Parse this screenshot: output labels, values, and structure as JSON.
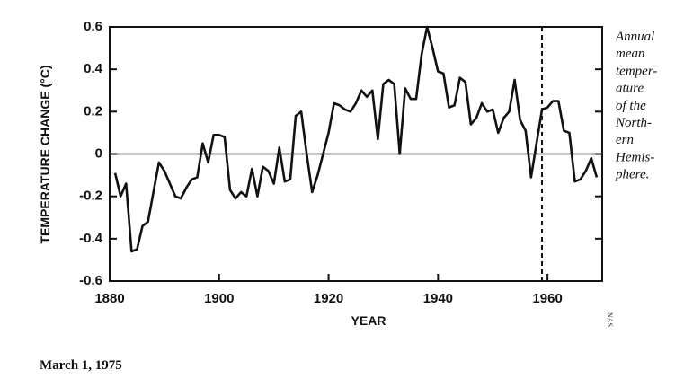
{
  "chart_data": {
    "type": "line",
    "xlabel": "YEAR",
    "ylabel": "TEMPERATURE CHANGE (°C)",
    "annotation_lines": [
      "Annual",
      "mean",
      "temper-",
      "ature",
      "of the",
      "North-",
      "ern",
      "Hemis-",
      "phere."
    ],
    "credit": "NAS",
    "date": "March 1, 1975",
    "xlim": [
      1880,
      1970
    ],
    "ylim": [
      -0.6,
      0.6
    ],
    "xticks": [
      1880,
      1900,
      1920,
      1940,
      1960
    ],
    "yticks": [
      0.6,
      0.4,
      0.2,
      0,
      -0.2,
      -0.4,
      -0.6
    ],
    "baseline": 0,
    "reference_line": {
      "x": 1959,
      "style": "dashed"
    },
    "color": "#111111",
    "x": [
      1881,
      1882,
      1883,
      1884,
      1885,
      1886,
      1887,
      1888,
      1889,
      1890,
      1891,
      1892,
      1893,
      1894,
      1895,
      1896,
      1897,
      1898,
      1899,
      1900,
      1901,
      1902,
      1903,
      1904,
      1905,
      1906,
      1907,
      1908,
      1909,
      1910,
      1911,
      1912,
      1913,
      1914,
      1915,
      1916,
      1917,
      1918,
      1919,
      1920,
      1921,
      1922,
      1923,
      1924,
      1925,
      1926,
      1927,
      1928,
      1929,
      1930,
      1931,
      1932,
      1933,
      1934,
      1935,
      1936,
      1937,
      1938,
      1939,
      1940,
      1941,
      1942,
      1943,
      1944,
      1945,
      1946,
      1947,
      1948,
      1949,
      1950,
      1951,
      1952,
      1953,
      1954,
      1955,
      1956,
      1957,
      1958,
      1959,
      1960,
      1961,
      1962,
      1963,
      1964,
      1965,
      1966,
      1967,
      1968,
      1969
    ],
    "values": [
      -0.09,
      -0.2,
      -0.14,
      -0.46,
      -0.45,
      -0.34,
      -0.32,
      -0.18,
      -0.04,
      -0.08,
      -0.14,
      -0.2,
      -0.21,
      -0.16,
      -0.12,
      -0.11,
      0.05,
      -0.04,
      0.09,
      0.09,
      0.08,
      -0.17,
      -0.21,
      -0.18,
      -0.2,
      -0.07,
      -0.2,
      -0.06,
      -0.08,
      -0.14,
      0.03,
      -0.13,
      -0.12,
      0.18,
      0.2,
      0.0,
      -0.18,
      -0.1,
      0.0,
      0.1,
      0.24,
      0.23,
      0.21,
      0.2,
      0.24,
      0.3,
      0.27,
      0.3,
      0.07,
      0.33,
      0.35,
      0.33,
      0.0,
      0.31,
      0.26,
      0.26,
      0.47,
      0.6,
      0.5,
      0.39,
      0.38,
      0.22,
      0.23,
      0.36,
      0.34,
      0.14,
      0.17,
      0.24,
      0.2,
      0.21,
      0.1,
      0.17,
      0.2,
      0.35,
      0.16,
      0.11,
      -0.11,
      0.05,
      0.21,
      0.22,
      0.25,
      0.25,
      0.11,
      0.1,
      -0.13,
      -0.12,
      -0.08,
      -0.02,
      -0.11
    ]
  }
}
